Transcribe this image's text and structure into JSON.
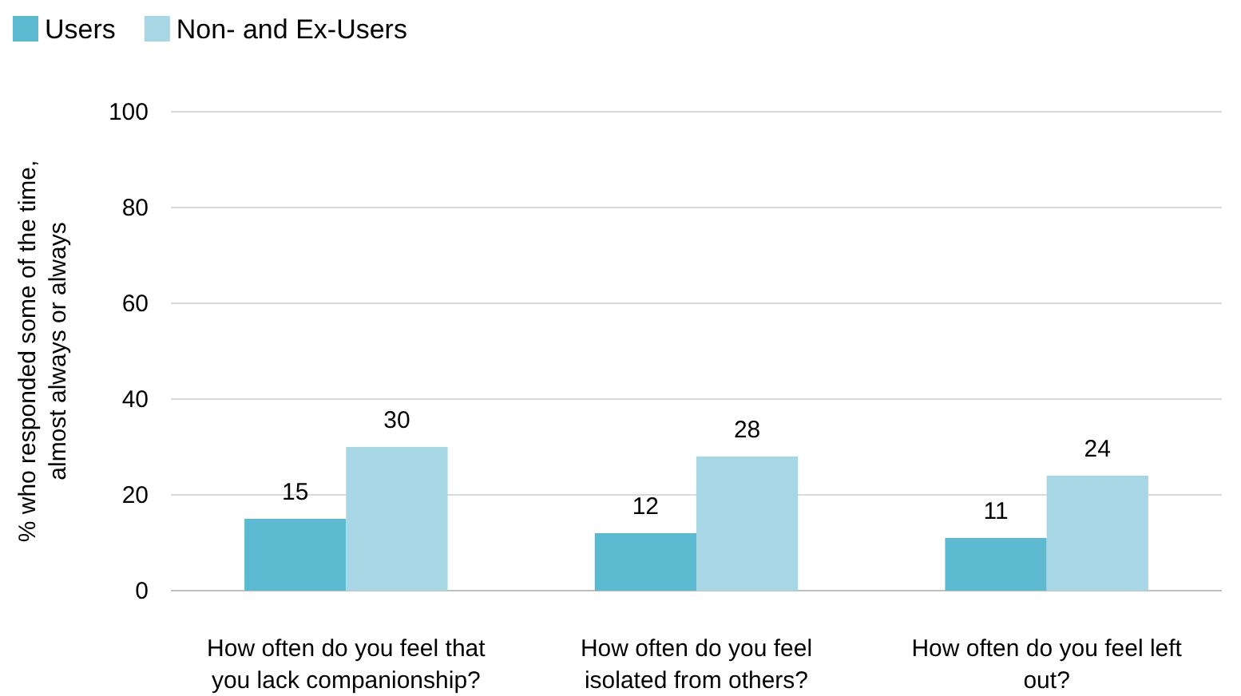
{
  "chart_data": {
    "type": "bar",
    "ylabel": "% who responded some of the time, almost always or always",
    "categories": [
      "How often do you feel that you lack companionship?",
      "How often do you feel isolated from others?",
      "How often do you feel left out?"
    ],
    "series": [
      {
        "name": "Users",
        "color": "#5bbad0",
        "values": [
          15,
          12,
          11
        ]
      },
      {
        "name": "Non- and Ex-Users",
        "color": "#a7d6e4",
        "values": [
          30,
          28,
          24
        ]
      }
    ],
    "ylim": [
      0,
      100
    ],
    "yticks": [
      0,
      20,
      40,
      60,
      80,
      100
    ],
    "grid": "y",
    "legend": "top left",
    "data_labels": true
  }
}
